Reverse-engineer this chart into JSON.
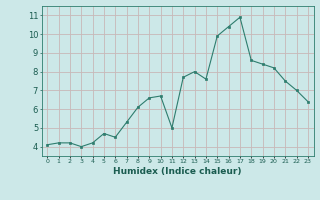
{
  "x": [
    0,
    1,
    2,
    3,
    4,
    5,
    6,
    7,
    8,
    9,
    10,
    11,
    12,
    13,
    14,
    15,
    16,
    17,
    18,
    19,
    20,
    21,
    22,
    23
  ],
  "y": [
    4.1,
    4.2,
    4.2,
    4.0,
    4.2,
    4.7,
    4.5,
    5.3,
    6.1,
    6.6,
    6.7,
    5.0,
    7.7,
    8.0,
    7.6,
    9.9,
    10.4,
    10.9,
    8.6,
    8.4,
    8.2,
    7.5,
    7.0,
    6.4
  ],
  "xlabel": "Humidex (Indice chaleur)",
  "ylabel": "",
  "ylim": [
    3.5,
    11.5
  ],
  "xlim": [
    -0.5,
    23.5
  ],
  "line_color": "#2e7d6e",
  "marker_color": "#2e7d6e",
  "bg_color": "#cce8e8",
  "grid_color": "#c8b8b8",
  "yticks": [
    4,
    5,
    6,
    7,
    8,
    9,
    10,
    11
  ],
  "xtick_labels": [
    "0",
    "1",
    "2",
    "3",
    "4",
    "5",
    "6",
    "7",
    "8",
    "9",
    "10",
    "11",
    "12",
    "13",
    "14",
    "15",
    "16",
    "17",
    "18",
    "19",
    "20",
    "21",
    "22",
    "23"
  ],
  "tick_color": "#1a5c50",
  "xlabel_fontsize": 6.5,
  "xlabel_fontweight": "bold"
}
